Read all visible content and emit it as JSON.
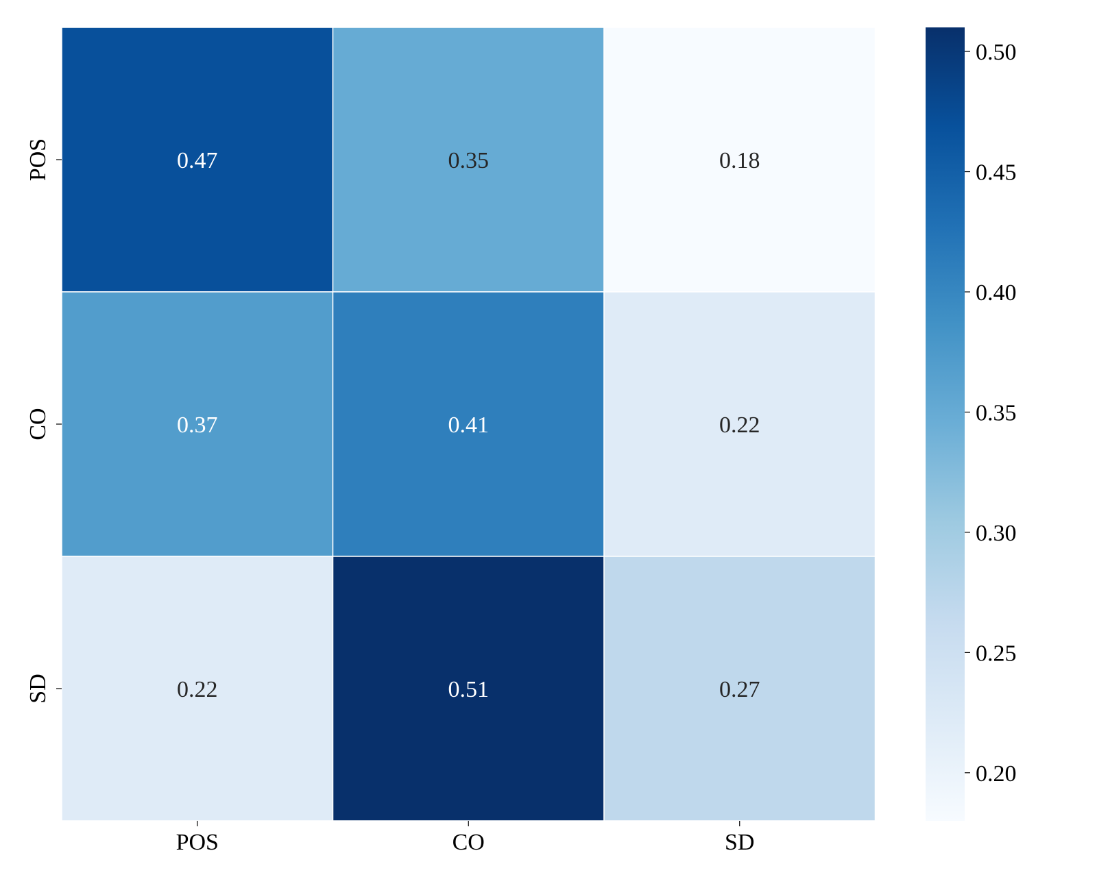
{
  "chart_data": {
    "type": "heatmap",
    "title": "",
    "xlabel": "",
    "ylabel": "",
    "x_categories": [
      "POS",
      "CO",
      "SD"
    ],
    "y_categories": [
      "POS",
      "CO",
      "SD"
    ],
    "values": [
      [
        0.47,
        0.35,
        0.18
      ],
      [
        0.37,
        0.41,
        0.22
      ],
      [
        0.22,
        0.51,
        0.27
      ]
    ],
    "colormap": "Blues",
    "colorbar": {
      "vmin": 0.18,
      "vmax": 0.51,
      "ticks": [
        0.2,
        0.25,
        0.3,
        0.35,
        0.4,
        0.45,
        0.5
      ],
      "tick_labels": [
        "0.20",
        "0.25",
        "0.30",
        "0.35",
        "0.40",
        "0.45",
        "0.50"
      ]
    },
    "cell_labels": [
      [
        "0.47",
        "0.35",
        "0.18"
      ],
      [
        "0.37",
        "0.41",
        "0.22"
      ],
      [
        "0.22",
        "0.51",
        "0.27"
      ]
    ]
  }
}
